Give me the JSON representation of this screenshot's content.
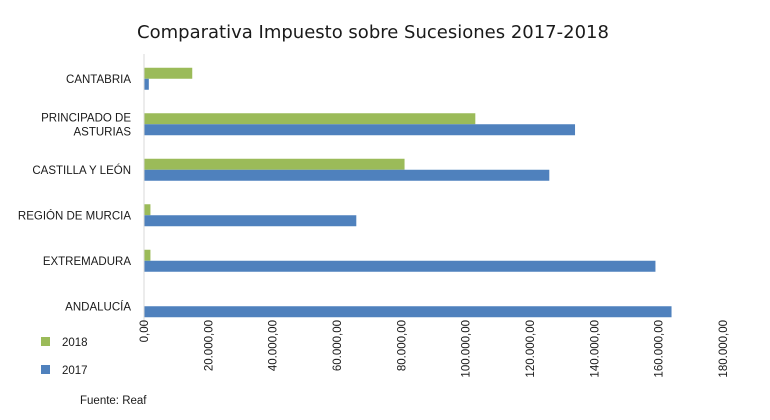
{
  "chart_data": {
    "type": "bar",
    "orientation": "horizontal",
    "title": "Comparativa Impuesto sobre Sucesiones 2017-2018",
    "categories": [
      [
        "CANTABRIA"
      ],
      [
        "PRINCIPADO DE",
        "ASTURIAS"
      ],
      [
        "CASTILLA Y LEÓN"
      ],
      [
        "REGIÓN DE MURCIA"
      ],
      [
        "EXTREMADURA"
      ],
      [
        "ANDALUCÍA"
      ]
    ],
    "series": [
      {
        "name": "2018",
        "color": "#9bbb59",
        "values": [
          15000,
          103000,
          81000,
          2000,
          2000,
          0
        ]
      },
      {
        "name": "2017",
        "color": "#4f81bd",
        "values": [
          1500,
          134000,
          126000,
          66000,
          159000,
          164000
        ]
      }
    ],
    "xlim": [
      0,
      180000
    ],
    "ticks": [
      0,
      20000,
      40000,
      60000,
      80000,
      100000,
      120000,
      140000,
      160000,
      180000
    ],
    "tick_labels": [
      "0,00",
      "20.000,00",
      "40.000,00",
      "60.000,00",
      "80.000,00",
      "100.000,00",
      "120.000,00",
      "140.000,00",
      "160.000,00",
      "180.000,00"
    ],
    "grid": false,
    "legend": {
      "position": "bottom-left",
      "entries": [
        "2018",
        "2017"
      ]
    },
    "source": "Fuente:  Reaf"
  }
}
